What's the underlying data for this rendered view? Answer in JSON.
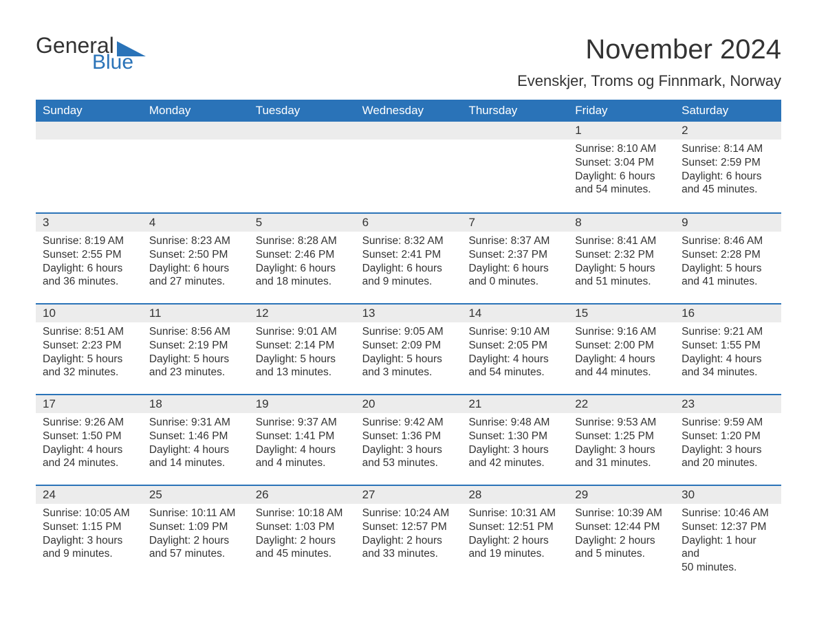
{
  "colors": {
    "brand_blue": "#2a73b8",
    "header_text": "#ffffff",
    "body_text": "#333333",
    "daynum_bg": "#ececec",
    "page_bg": "#ffffff"
  },
  "typography": {
    "font_family": "Segoe UI, Arial, Helvetica, sans-serif",
    "month_title_size": 40,
    "location_size": 22,
    "weekday_size": 17,
    "daynum_size": 17,
    "body_size": 15.5
  },
  "logo": {
    "word1": "General",
    "word2": "Blue"
  },
  "title": "November 2024",
  "location": "Evenskjer, Troms og Finnmark, Norway",
  "weekdays": [
    "Sunday",
    "Monday",
    "Tuesday",
    "Wednesday",
    "Thursday",
    "Friday",
    "Saturday"
  ],
  "weeks": [
    [
      null,
      null,
      null,
      null,
      null,
      {
        "n": "1",
        "sr": "Sunrise: 8:10 AM",
        "ss": "Sunset: 3:04 PM",
        "d1": "Daylight: 6 hours",
        "d2": "and 54 minutes."
      },
      {
        "n": "2",
        "sr": "Sunrise: 8:14 AM",
        "ss": "Sunset: 2:59 PM",
        "d1": "Daylight: 6 hours",
        "d2": "and 45 minutes."
      }
    ],
    [
      {
        "n": "3",
        "sr": "Sunrise: 8:19 AM",
        "ss": "Sunset: 2:55 PM",
        "d1": "Daylight: 6 hours",
        "d2": "and 36 minutes."
      },
      {
        "n": "4",
        "sr": "Sunrise: 8:23 AM",
        "ss": "Sunset: 2:50 PM",
        "d1": "Daylight: 6 hours",
        "d2": "and 27 minutes."
      },
      {
        "n": "5",
        "sr": "Sunrise: 8:28 AM",
        "ss": "Sunset: 2:46 PM",
        "d1": "Daylight: 6 hours",
        "d2": "and 18 minutes."
      },
      {
        "n": "6",
        "sr": "Sunrise: 8:32 AM",
        "ss": "Sunset: 2:41 PM",
        "d1": "Daylight: 6 hours",
        "d2": "and 9 minutes."
      },
      {
        "n": "7",
        "sr": "Sunrise: 8:37 AM",
        "ss": "Sunset: 2:37 PM",
        "d1": "Daylight: 6 hours",
        "d2": "and 0 minutes."
      },
      {
        "n": "8",
        "sr": "Sunrise: 8:41 AM",
        "ss": "Sunset: 2:32 PM",
        "d1": "Daylight: 5 hours",
        "d2": "and 51 minutes."
      },
      {
        "n": "9",
        "sr": "Sunrise: 8:46 AM",
        "ss": "Sunset: 2:28 PM",
        "d1": "Daylight: 5 hours",
        "d2": "and 41 minutes."
      }
    ],
    [
      {
        "n": "10",
        "sr": "Sunrise: 8:51 AM",
        "ss": "Sunset: 2:23 PM",
        "d1": "Daylight: 5 hours",
        "d2": "and 32 minutes."
      },
      {
        "n": "11",
        "sr": "Sunrise: 8:56 AM",
        "ss": "Sunset: 2:19 PM",
        "d1": "Daylight: 5 hours",
        "d2": "and 23 minutes."
      },
      {
        "n": "12",
        "sr": "Sunrise: 9:01 AM",
        "ss": "Sunset: 2:14 PM",
        "d1": "Daylight: 5 hours",
        "d2": "and 13 minutes."
      },
      {
        "n": "13",
        "sr": "Sunrise: 9:05 AM",
        "ss": "Sunset: 2:09 PM",
        "d1": "Daylight: 5 hours",
        "d2": "and 3 minutes."
      },
      {
        "n": "14",
        "sr": "Sunrise: 9:10 AM",
        "ss": "Sunset: 2:05 PM",
        "d1": "Daylight: 4 hours",
        "d2": "and 54 minutes."
      },
      {
        "n": "15",
        "sr": "Sunrise: 9:16 AM",
        "ss": "Sunset: 2:00 PM",
        "d1": "Daylight: 4 hours",
        "d2": "and 44 minutes."
      },
      {
        "n": "16",
        "sr": "Sunrise: 9:21 AM",
        "ss": "Sunset: 1:55 PM",
        "d1": "Daylight: 4 hours",
        "d2": "and 34 minutes."
      }
    ],
    [
      {
        "n": "17",
        "sr": "Sunrise: 9:26 AM",
        "ss": "Sunset: 1:50 PM",
        "d1": "Daylight: 4 hours",
        "d2": "and 24 minutes."
      },
      {
        "n": "18",
        "sr": "Sunrise: 9:31 AM",
        "ss": "Sunset: 1:46 PM",
        "d1": "Daylight: 4 hours",
        "d2": "and 14 minutes."
      },
      {
        "n": "19",
        "sr": "Sunrise: 9:37 AM",
        "ss": "Sunset: 1:41 PM",
        "d1": "Daylight: 4 hours",
        "d2": "and 4 minutes."
      },
      {
        "n": "20",
        "sr": "Sunrise: 9:42 AM",
        "ss": "Sunset: 1:36 PM",
        "d1": "Daylight: 3 hours",
        "d2": "and 53 minutes."
      },
      {
        "n": "21",
        "sr": "Sunrise: 9:48 AM",
        "ss": "Sunset: 1:30 PM",
        "d1": "Daylight: 3 hours",
        "d2": "and 42 minutes."
      },
      {
        "n": "22",
        "sr": "Sunrise: 9:53 AM",
        "ss": "Sunset: 1:25 PM",
        "d1": "Daylight: 3 hours",
        "d2": "and 31 minutes."
      },
      {
        "n": "23",
        "sr": "Sunrise: 9:59 AM",
        "ss": "Sunset: 1:20 PM",
        "d1": "Daylight: 3 hours",
        "d2": "and 20 minutes."
      }
    ],
    [
      {
        "n": "24",
        "sr": "Sunrise: 10:05 AM",
        "ss": "Sunset: 1:15 PM",
        "d1": "Daylight: 3 hours",
        "d2": "and 9 minutes."
      },
      {
        "n": "25",
        "sr": "Sunrise: 10:11 AM",
        "ss": "Sunset: 1:09 PM",
        "d1": "Daylight: 2 hours",
        "d2": "and 57 minutes."
      },
      {
        "n": "26",
        "sr": "Sunrise: 10:18 AM",
        "ss": "Sunset: 1:03 PM",
        "d1": "Daylight: 2 hours",
        "d2": "and 45 minutes."
      },
      {
        "n": "27",
        "sr": "Sunrise: 10:24 AM",
        "ss": "Sunset: 12:57 PM",
        "d1": "Daylight: 2 hours",
        "d2": "and 33 minutes."
      },
      {
        "n": "28",
        "sr": "Sunrise: 10:31 AM",
        "ss": "Sunset: 12:51 PM",
        "d1": "Daylight: 2 hours",
        "d2": "and 19 minutes."
      },
      {
        "n": "29",
        "sr": "Sunrise: 10:39 AM",
        "ss": "Sunset: 12:44 PM",
        "d1": "Daylight: 2 hours",
        "d2": "and 5 minutes."
      },
      {
        "n": "30",
        "sr": "Sunrise: 10:46 AM",
        "ss": "Sunset: 12:37 PM",
        "d1": "Daylight: 1 hour and",
        "d2": "50 minutes."
      }
    ]
  ]
}
